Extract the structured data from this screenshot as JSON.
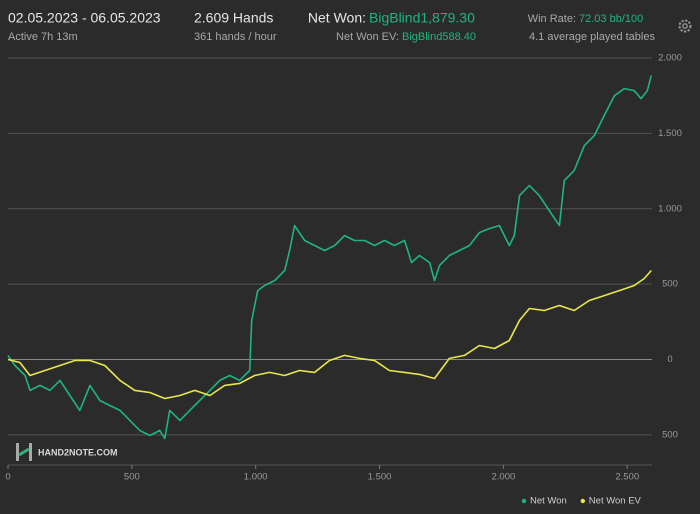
{
  "header": {
    "date_range": "02.05.2023 - 06.05.2023",
    "active": "Active 7h 13m",
    "hands": "2.609 Hands",
    "hands_rate": "361 hands / hour",
    "net_won_label": "Net Won:",
    "net_won_value": "BigBlind1,879.30",
    "net_won_ev_label": "Net Won  EV:",
    "net_won_ev_value": "BigBlind588.40",
    "win_rate_label": "Win Rate:",
    "win_rate_value": "72.03 bb/100",
    "tables": "4.1 average played tables",
    "logo": "HAND2NOTE.COM"
  },
  "chart_data": {
    "type": "line",
    "xlim": [
      0,
      2600
    ],
    "xticks": [
      0,
      500,
      {
        "value": 1000,
        "label": "1.000"
      },
      {
        "value": 1500,
        "label": "1.500"
      },
      {
        "value": 2000,
        "label": "2.000"
      },
      {
        "value": 2500,
        "label": "2.500"
      }
    ],
    "ylim": [
      -700,
      2000
    ],
    "yticks": [
      {
        "value": -500,
        "label": "500"
      },
      0,
      500,
      {
        "value": 1000,
        "label": "1.000"
      },
      {
        "value": 1500,
        "label": "1.500"
      },
      {
        "value": 2000,
        "label": "2.000"
      }
    ],
    "grid": true,
    "legend": "bottom-right",
    "series": [
      {
        "name": "Net Won",
        "color": "#1fb57e",
        "x": [
          0,
          28,
          69,
          89,
          129,
          169,
          210,
          250,
          290,
          331,
          371,
          411,
          452,
          492,
          532,
          573,
          613,
          633,
          653,
          694,
          734,
          774,
          815,
          855,
          895,
          935,
          976,
          984,
          1008,
          1036,
          1077,
          1117,
          1137,
          1157,
          1198,
          1238,
          1278,
          1319,
          1359,
          1399,
          1440,
          1480,
          1520,
          1560,
          1601,
          1629,
          1661,
          1702,
          1722,
          1742,
          1782,
          1823,
          1863,
          1903,
          1944,
          1984,
          2024,
          2044,
          2065,
          2105,
          2145,
          2185,
          2226,
          2246,
          2286,
          2327,
          2367,
          2407,
          2448,
          2488,
          2528,
          2556,
          2581,
          2597
        ],
        "values": [
          27,
          -40,
          -106,
          -205,
          -172,
          -205,
          -139,
          -239,
          -338,
          -172,
          -272,
          -305,
          -338,
          -404,
          -471,
          -504,
          -471,
          -524,
          -338,
          -404,
          -338,
          -272,
          -205,
          -139,
          -106,
          -139,
          -73,
          259,
          457,
          491,
          524,
          590,
          723,
          888,
          789,
          756,
          723,
          756,
          822,
          789,
          789,
          756,
          789,
          756,
          789,
          643,
          690,
          643,
          524,
          623,
          690,
          723,
          756,
          842,
          869,
          888,
          756,
          822,
          1087,
          1154,
          1087,
          988,
          888,
          1187,
          1253,
          1419,
          1485,
          1618,
          1750,
          1797,
          1784,
          1730,
          1784,
          1883
        ]
      },
      {
        "name": "Net Won  EV",
        "color": "#e8e84a",
        "x": [
          0,
          48,
          89,
          149,
          210,
          270,
          331,
          391,
          452,
          512,
          573,
          633,
          694,
          754,
          815,
          875,
          935,
          996,
          1056,
          1117,
          1177,
          1238,
          1298,
          1359,
          1419,
          1480,
          1540,
          1601,
          1661,
          1722,
          1782,
          1843,
          1903,
          1964,
          2024,
          2065,
          2105,
          2165,
          2226,
          2286,
          2347,
          2407,
          2468,
          2528,
          2569,
          2597
        ],
        "values": [
          0,
          -20,
          -106,
          -73,
          -40,
          -7,
          -7,
          -40,
          -139,
          -205,
          -219,
          -259,
          -239,
          -205,
          -239,
          -172,
          -159,
          -106,
          -86,
          -106,
          -73,
          -86,
          -7,
          27,
          7,
          -7,
          -73,
          -86,
          -99,
          -126,
          7,
          27,
          93,
          73,
          126,
          259,
          338,
          325,
          358,
          325,
          391,
          424,
          457,
          491,
          537,
          590
        ]
      }
    ]
  }
}
